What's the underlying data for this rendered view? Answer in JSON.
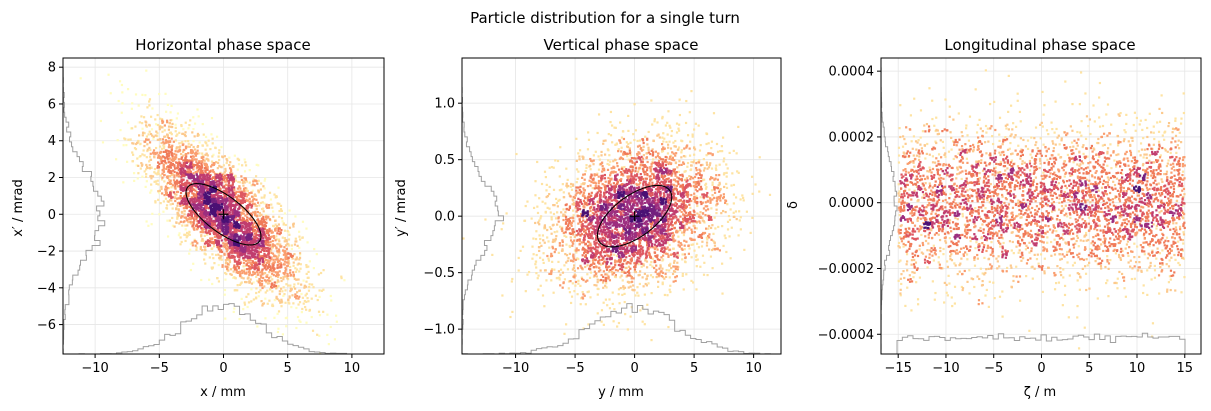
{
  "suptitle": "Particle distribution for a single turn",
  "chart_data": [
    {
      "type": "scatter",
      "title": "Horizontal phase space",
      "xlabel": "x / mm",
      "ylabel": "x′ / mrad",
      "xlim": [
        -12.5,
        12.5
      ],
      "ylim": [
        -7.6,
        8.5
      ],
      "xticks": [
        -10,
        -5,
        0,
        5,
        10
      ],
      "xtick_labels": [
        "−10",
        "−5",
        "0",
        "5",
        "10"
      ],
      "yticks": [
        -6,
        -4,
        -2,
        0,
        2,
        4,
        6,
        8
      ],
      "ytick_labels": [
        "−6",
        "−4",
        "−2",
        "0",
        "2",
        "4",
        "6",
        "8"
      ],
      "grid": true,
      "distribution": {
        "x_mean": 0,
        "x_std": 3.0,
        "y_mean": 0,
        "y_std": 2.3,
        "correlation": -0.78,
        "count": 4000
      },
      "ellipse": {
        "center": [
          0,
          0
        ],
        "rotation_deg": -38,
        "semi_axes": [
          3.6,
          1.1
        ]
      },
      "centroid_marker": [
        0,
        0
      ],
      "colormap": "magma_r"
    },
    {
      "type": "scatter",
      "title": "Vertical phase space",
      "xlabel": "y / mm",
      "ylabel": "y′ / mrad",
      "xlim": [
        -14.5,
        12.3
      ],
      "ylim": [
        -1.22,
        1.4
      ],
      "xticks": [
        -10,
        -5,
        0,
        5,
        10
      ],
      "xtick_labels": [
        "−10",
        "−5",
        "0",
        "5",
        "10"
      ],
      "yticks": [
        -1.0,
        -0.5,
        0.0,
        0.5,
        1.0
      ],
      "ytick_labels": [
        "−1.0",
        "−0.5",
        "0.0",
        "0.5",
        "1.0"
      ],
      "grid": true,
      "distribution": {
        "x_mean": 0,
        "x_std": 3.6,
        "y_mean": 0,
        "y_std": 0.32,
        "correlation": 0.25,
        "count": 4000
      },
      "ellipse": {
        "center": [
          0,
          0
        ],
        "rotation_deg": 30,
        "semi_axes": [
          3.6,
          0.24
        ]
      },
      "centroid_marker": [
        0,
        0
      ],
      "colormap": "magma_r"
    },
    {
      "type": "scatter",
      "title": "Longitudinal phase space",
      "xlabel": "ζ / m",
      "ylabel": "δ",
      "xlim": [
        -16.8,
        16.7
      ],
      "ylim": [
        -0.00046,
        0.00044
      ],
      "xticks": [
        -15,
        -10,
        -5,
        0,
        5,
        10,
        15
      ],
      "xtick_labels": [
        "−15",
        "−10",
        "−5",
        "0",
        "5",
        "10",
        "15"
      ],
      "yticks": [
        -0.0004,
        -0.0002,
        0.0,
        0.0002,
        0.0004
      ],
      "ytick_labels": [
        "−0.0004",
        "−0.0002",
        "0.0000",
        "0.0002",
        "0.0004"
      ],
      "grid": true,
      "distribution": {
        "x_uniform": [
          -15,
          15
        ],
        "y_mean": 0,
        "y_std": 0.00012,
        "count": 4000
      },
      "colormap": "magma_r"
    }
  ],
  "colors": {
    "axes": "#000000",
    "grid": "#e6e6e6",
    "histogram": "#a0a0a0",
    "ellipse": "#000000"
  }
}
